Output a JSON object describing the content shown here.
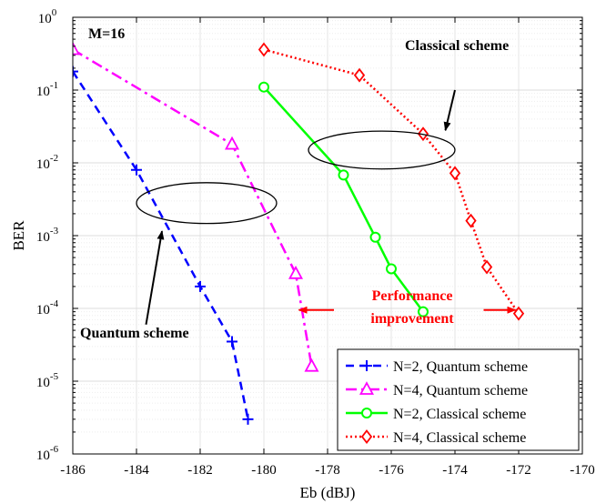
{
  "chart_data": {
    "type": "line",
    "xlabel": "Eb (dBJ)",
    "ylabel": "BER",
    "xlim": [
      -186,
      -170
    ],
    "ylim": [
      1e-06,
      1
    ],
    "yscale": "log",
    "grid": true,
    "minor_grid": true,
    "legend_position": "bottom-right",
    "x_ticks": [
      -186,
      -184,
      -182,
      -180,
      -178,
      -176,
      -174,
      -172,
      -170
    ],
    "x_tick_labels": [
      "-186",
      "-184",
      "-182",
      "-180",
      "-178",
      "-176",
      "-174",
      "-172",
      "-170"
    ],
    "y_ticks": [
      {
        "base": "10",
        "exp": "-6",
        "value": 1e-06
      },
      {
        "base": "10",
        "exp": "-5",
        "value": 1e-05
      },
      {
        "base": "10",
        "exp": "-4",
        "value": 0.0001
      },
      {
        "base": "10",
        "exp": "-3",
        "value": 0.001
      },
      {
        "base": "10",
        "exp": "-2",
        "value": 0.01
      },
      {
        "base": "10",
        "exp": "-1",
        "value": 0.1
      },
      {
        "base": "10",
        "exp": "0",
        "value": 1
      }
    ],
    "series": [
      {
        "name": "N=2, Quantum scheme",
        "color": "#0000FF",
        "line_style": "dashed",
        "marker": "plus",
        "points": [
          [
            -186,
            0.18
          ],
          [
            -184,
            0.008
          ],
          [
            -182,
            0.0002
          ],
          [
            -181,
            3.5e-05
          ],
          [
            -180.5,
            3e-06
          ]
        ]
      },
      {
        "name": "N=4, Quantum scheme",
        "color": "#FF00FF",
        "line_style": "dashdot",
        "marker": "triangle",
        "points": [
          [
            -186,
            0.36
          ],
          [
            -181,
            0.018
          ],
          [
            -179,
            0.0003
          ],
          [
            -178.5,
            1.6e-05
          ]
        ]
      },
      {
        "name": "N=2, Classical scheme",
        "color": "#00FF00",
        "line_style": "solid",
        "marker": "circle",
        "points": [
          [
            -180,
            0.11
          ],
          [
            -177.5,
            0.0068
          ],
          [
            -176.5,
            0.00095
          ],
          [
            -176,
            0.00035
          ],
          [
            -175,
            9e-05
          ]
        ]
      },
      {
        "name": "N=4, Classical scheme",
        "color": "#FF0000",
        "line_style": "dotted",
        "marker": "diamond",
        "points": [
          [
            -180,
            0.36
          ],
          [
            -177,
            0.16
          ],
          [
            -175,
            0.025
          ],
          [
            -174,
            0.0072
          ],
          [
            -173.5,
            0.0016
          ],
          [
            -173,
            0.00037
          ],
          [
            -172,
            8.5e-05
          ]
        ]
      }
    ],
    "annotations": {
      "m_label": "M=16",
      "classical_label": "Classical scheme",
      "quantum_label": "Quantum scheme",
      "performance_line1": "Performance",
      "performance_line2": "improvement",
      "performance_color": "#FF0000",
      "quantum_ellipse": {
        "x": -181.8,
        "y": 0.0028,
        "rx": 2.2,
        "ry_decades": 0.28
      },
      "classical_ellipse": {
        "x": -176.3,
        "y": 0.015,
        "rx": 2.3,
        "ry_decades": 0.26
      },
      "classical_arrow": {
        "from": [
          -174,
          0.1
        ],
        "to": [
          -174.3,
          0.028
        ]
      },
      "quantum_arrow": {
        "from": [
          -183.7,
          6e-05
        ],
        "to": [
          -183.2,
          0.00115
        ]
      },
      "perf_arrow_left": {
        "from": [
          -177.8,
          9.5e-05
        ],
        "to": [
          -178.9,
          9.5e-05
        ]
      },
      "perf_arrow_right": {
        "from": [
          -173.1,
          9.5e-05
        ],
        "to": [
          -172.1,
          9.5e-05
        ]
      }
    }
  }
}
